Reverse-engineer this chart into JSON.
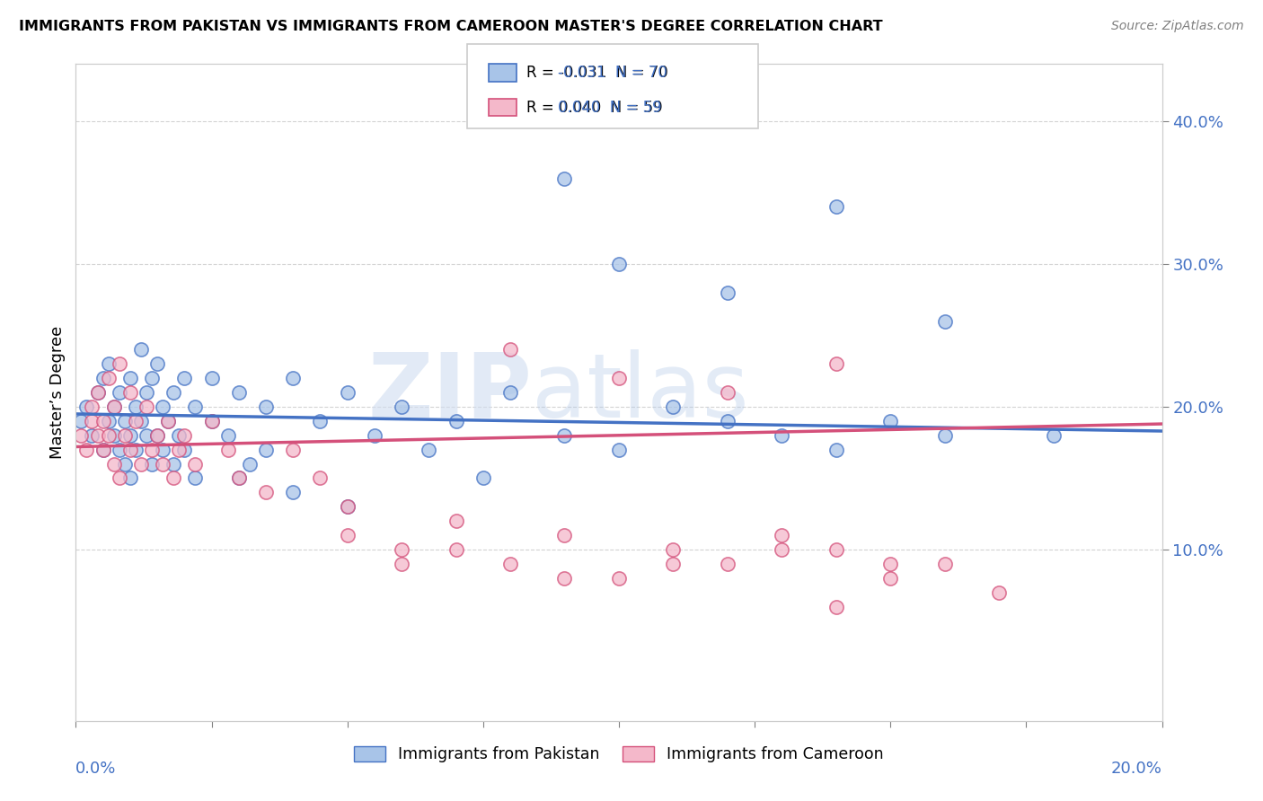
{
  "title": "IMMIGRANTS FROM PAKISTAN VS IMMIGRANTS FROM CAMEROON MASTER'S DEGREE CORRELATION CHART",
  "source": "Source: ZipAtlas.com",
  "ylabel": "Master’s Degree",
  "ytick_vals": [
    0.1,
    0.2,
    0.3,
    0.4
  ],
  "xlim": [
    0.0,
    0.2
  ],
  "ylim": [
    -0.02,
    0.44
  ],
  "pakistan_color": "#a8c4e8",
  "cameroon_color": "#f4b8ca",
  "pakistan_line_color": "#4472c4",
  "cameroon_line_color": "#d4507a",
  "watermark_zip": "ZIP",
  "watermark_atlas": "atlas",
  "pakistan_r": "-0.031",
  "pakistan_n": "70",
  "cameroon_r": "0.040",
  "cameroon_n": "59",
  "pk_line_x0": 0.0,
  "pk_line_x1": 0.2,
  "pk_line_y0": 0.195,
  "pk_line_y1": 0.183,
  "cm_line_x0": 0.0,
  "cm_line_x1": 0.2,
  "cm_line_y0": 0.172,
  "cm_line_y1": 0.188,
  "pakistan_scatter_x": [
    0.001,
    0.002,
    0.003,
    0.004,
    0.005,
    0.005,
    0.006,
    0.006,
    0.007,
    0.007,
    0.008,
    0.008,
    0.009,
    0.009,
    0.01,
    0.01,
    0.01,
    0.011,
    0.011,
    0.012,
    0.012,
    0.013,
    0.013,
    0.014,
    0.014,
    0.015,
    0.015,
    0.016,
    0.016,
    0.017,
    0.018,
    0.018,
    0.019,
    0.02,
    0.02,
    0.022,
    0.022,
    0.025,
    0.025,
    0.028,
    0.03,
    0.03,
    0.032,
    0.035,
    0.035,
    0.04,
    0.04,
    0.045,
    0.05,
    0.05,
    0.055,
    0.06,
    0.065,
    0.07,
    0.075,
    0.08,
    0.09,
    0.1,
    0.11,
    0.12,
    0.13,
    0.14,
    0.15,
    0.16,
    0.09,
    0.1,
    0.12,
    0.14,
    0.16,
    0.18
  ],
  "pakistan_scatter_y": [
    0.19,
    0.2,
    0.18,
    0.21,
    0.17,
    0.22,
    0.19,
    0.23,
    0.18,
    0.2,
    0.17,
    0.21,
    0.16,
    0.19,
    0.18,
    0.22,
    0.15,
    0.2,
    0.17,
    0.19,
    0.24,
    0.18,
    0.21,
    0.16,
    0.22,
    0.18,
    0.23,
    0.17,
    0.2,
    0.19,
    0.16,
    0.21,
    0.18,
    0.17,
    0.22,
    0.15,
    0.2,
    0.19,
    0.22,
    0.18,
    0.15,
    0.21,
    0.16,
    0.2,
    0.17,
    0.14,
    0.22,
    0.19,
    0.13,
    0.21,
    0.18,
    0.2,
    0.17,
    0.19,
    0.15,
    0.21,
    0.18,
    0.17,
    0.2,
    0.19,
    0.18,
    0.17,
    0.19,
    0.18,
    0.36,
    0.3,
    0.28,
    0.34,
    0.26,
    0.18
  ],
  "cameroon_scatter_x": [
    0.001,
    0.002,
    0.003,
    0.003,
    0.004,
    0.004,
    0.005,
    0.005,
    0.006,
    0.006,
    0.007,
    0.007,
    0.008,
    0.008,
    0.009,
    0.01,
    0.01,
    0.011,
    0.012,
    0.013,
    0.014,
    0.015,
    0.016,
    0.017,
    0.018,
    0.019,
    0.02,
    0.022,
    0.025,
    0.028,
    0.03,
    0.035,
    0.04,
    0.045,
    0.05,
    0.06,
    0.07,
    0.08,
    0.09,
    0.1,
    0.11,
    0.12,
    0.13,
    0.14,
    0.15,
    0.08,
    0.1,
    0.12,
    0.14,
    0.05,
    0.06,
    0.07,
    0.09,
    0.11,
    0.13,
    0.15,
    0.16,
    0.17,
    0.14
  ],
  "cameroon_scatter_y": [
    0.18,
    0.17,
    0.19,
    0.2,
    0.18,
    0.21,
    0.17,
    0.19,
    0.18,
    0.22,
    0.16,
    0.2,
    0.15,
    0.23,
    0.18,
    0.17,
    0.21,
    0.19,
    0.16,
    0.2,
    0.17,
    0.18,
    0.16,
    0.19,
    0.15,
    0.17,
    0.18,
    0.16,
    0.19,
    0.17,
    0.15,
    0.14,
    0.17,
    0.15,
    0.13,
    0.1,
    0.12,
    0.09,
    0.11,
    0.08,
    0.1,
    0.09,
    0.11,
    0.1,
    0.09,
    0.24,
    0.22,
    0.21,
    0.23,
    0.11,
    0.09,
    0.1,
    0.08,
    0.09,
    0.1,
    0.08,
    0.09,
    0.07,
    0.06
  ]
}
